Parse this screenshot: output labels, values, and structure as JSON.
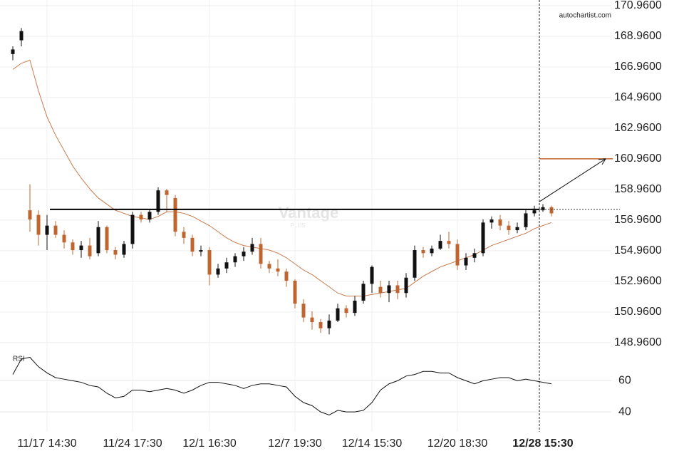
{
  "chart_data": {
    "type": "candlestick",
    "source": "autochartist.com",
    "watermark": "Vantage",
    "watermark_sub": "PLUS",
    "categories": [
      null,
      null,
      null,
      null,
      "11/17 14:30",
      null,
      null,
      null,
      null,
      null,
      null,
      null,
      null,
      null,
      "11/24 17:30",
      null,
      null,
      null,
      null,
      null,
      null,
      null,
      null,
      "12/1 16:30",
      null,
      null,
      null,
      null,
      null,
      null,
      null,
      null,
      null,
      "12/7 19:30",
      null,
      null,
      null,
      null,
      null,
      null,
      null,
      null,
      "12/14 15:30",
      null,
      null,
      null,
      null,
      null,
      null,
      null,
      null,
      null,
      "12/20 18:30",
      null,
      null,
      null,
      null,
      null,
      null,
      null,
      null,
      null,
      "12/28 15:30",
      null
    ],
    "open": [
      167.8,
      168.7,
      157.6,
      157.3,
      156.0,
      156.6,
      156.0,
      155.5,
      155.0,
      155.3,
      154.8,
      156.5,
      155.0,
      154.7,
      155.4,
      157.3,
      157.0,
      157.5,
      158.9,
      158.4,
      156.2,
      155.8,
      154.9,
      155.0,
      153.4,
      153.8,
      154.2,
      154.6,
      154.9,
      155.4,
      154.1,
      153.8,
      153.6,
      153.0,
      151.5,
      150.6,
      150.3,
      149.9,
      150.4,
      151.2,
      150.9,
      151.7,
      152.8,
      152.6,
      152.2,
      152.7,
      152.2,
      153.2,
      155.0,
      154.8,
      155.1,
      155.6,
      155.4,
      154.0,
      154.5,
      154.8,
      156.8,
      157.0,
      156.6,
      156.3,
      156.5,
      157.4,
      157.6,
      157.8
    ],
    "high": [
      168.3,
      169.5,
      159.3,
      157.6,
      157.3,
      156.9,
      156.3,
      155.7,
      155.6,
      155.8,
      156.9,
      156.6,
      155.2,
      155.6,
      157.5,
      157.5,
      157.7,
      159.1,
      159.0,
      158.6,
      156.5,
      156.0,
      155.3,
      155.2,
      154.1,
      154.5,
      154.8,
      155.2,
      155.8,
      155.8,
      154.3,
      154.4,
      153.8,
      153.1,
      151.8,
      151.0,
      150.5,
      150.8,
      151.5,
      151.4,
      152.0,
      153.0,
      154.0,
      153.0,
      153.0,
      153.0,
      153.5,
      155.3,
      155.2,
      155.3,
      156.0,
      156.2,
      155.7,
      154.8,
      155.1,
      157.0,
      157.2,
      157.3,
      156.9,
      156.8,
      157.6,
      157.9,
      158.0,
      157.9
    ],
    "low": [
      167.4,
      168.3,
      156.2,
      155.3,
      155.0,
      155.8,
      155.1,
      154.7,
      154.5,
      154.4,
      154.6,
      154.8,
      154.4,
      154.5,
      155.1,
      156.8,
      156.8,
      157.3,
      157.5,
      155.9,
      155.4,
      154.6,
      154.6,
      152.7,
      153.2,
      153.5,
      153.9,
      154.3,
      154.7,
      153.8,
      153.5,
      153.3,
      152.6,
      151.2,
      150.3,
      149.8,
      149.6,
      149.5,
      150.3,
      150.6,
      150.7,
      151.5,
      152.2,
      151.9,
      151.6,
      151.8,
      151.9,
      153.0,
      154.5,
      154.6,
      155.0,
      155.1,
      153.7,
      153.7,
      154.2,
      154.6,
      156.4,
      156.3,
      156.0,
      156.1,
      156.3,
      157.2,
      157.5,
      157.2
    ],
    "close": [
      168.1,
      169.3,
      157.0,
      156.0,
      156.6,
      156.0,
      155.5,
      155.0,
      155.3,
      154.6,
      156.5,
      155.0,
      154.7,
      155.4,
      157.3,
      157.0,
      157.5,
      158.9,
      158.6,
      156.2,
      155.8,
      154.9,
      155.0,
      153.4,
      153.8,
      154.2,
      154.6,
      154.9,
      155.4,
      154.1,
      153.8,
      153.6,
      153.0,
      151.5,
      150.6,
      150.3,
      149.9,
      150.4,
      151.2,
      150.9,
      151.7,
      152.8,
      153.9,
      152.2,
      152.7,
      152.2,
      153.2,
      155.0,
      154.8,
      155.1,
      155.6,
      155.4,
      154.0,
      154.5,
      154.8,
      156.8,
      157.0,
      156.6,
      156.3,
      156.5,
      157.4,
      157.6,
      157.8,
      157.4
    ],
    "up_color": "#111111",
    "down_color": "#c0652f",
    "ma": {
      "color": "#c97a4c",
      "values": [
        166.8,
        167.2,
        167.4,
        165.4,
        163.7,
        162.5,
        161.5,
        160.5,
        159.7,
        159.0,
        158.4,
        158.0,
        157.6,
        157.4,
        157.2,
        157.1,
        157.0,
        157.2,
        157.5,
        157.5,
        157.4,
        157.2,
        156.9,
        156.6,
        156.2,
        155.8,
        155.5,
        155.3,
        155.2,
        155.1,
        155.0,
        154.8,
        154.5,
        154.1,
        153.7,
        153.4,
        153.0,
        152.6,
        152.2,
        152.0,
        152.0,
        152.0,
        152.1,
        152.2,
        152.3,
        152.4,
        152.5,
        152.9,
        153.3,
        153.6,
        153.9,
        154.1,
        154.3,
        154.5,
        154.7,
        155.0,
        155.3,
        155.5,
        155.7,
        155.9,
        156.1,
        156.4,
        156.6,
        156.8
      ]
    },
    "resistance_level": 157.66,
    "target_level": 160.96,
    "arrow_start": 158.16,
    "ylim": [
      148.07,
      171.33
    ],
    "yticks": [
      {
        "value": 170.96,
        "label": "170.9600"
      },
      {
        "value": 168.96,
        "label": "168.9600"
      },
      {
        "value": 166.96,
        "label": "166.9600"
      },
      {
        "value": 164.96,
        "label": "164.9600"
      },
      {
        "value": 162.96,
        "label": "162.9600"
      },
      {
        "value": 160.96,
        "label": "160.9600"
      },
      {
        "value": 158.96,
        "label": "158.9600"
      },
      {
        "value": 156.96,
        "label": "156.9600"
      },
      {
        "value": 154.96,
        "label": "154.9600"
      },
      {
        "value": 152.96,
        "label": "152.9600"
      },
      {
        "value": 150.96,
        "label": "150.9600"
      },
      {
        "value": 148.96,
        "label": "148.9600"
      }
    ],
    "rsi": {
      "label": "RSI",
      "color": "#111111",
      "ylim": [
        30,
        78
      ],
      "yticks": [
        60,
        40
      ],
      "values": [
        64,
        74,
        75,
        69,
        65,
        62,
        61,
        60,
        59,
        57,
        56,
        52,
        49,
        50,
        54,
        54,
        53,
        54,
        55,
        54,
        52,
        54,
        57,
        59,
        59,
        58,
        57,
        55,
        57,
        58,
        58,
        57,
        56,
        50,
        46,
        44,
        40,
        38,
        41,
        40,
        40,
        41,
        46,
        54,
        58,
        60,
        63,
        64,
        66,
        66,
        65,
        65,
        62,
        60,
        58,
        60,
        61,
        62,
        62,
        60,
        61,
        60,
        59,
        58
      ]
    },
    "grid": true
  }
}
